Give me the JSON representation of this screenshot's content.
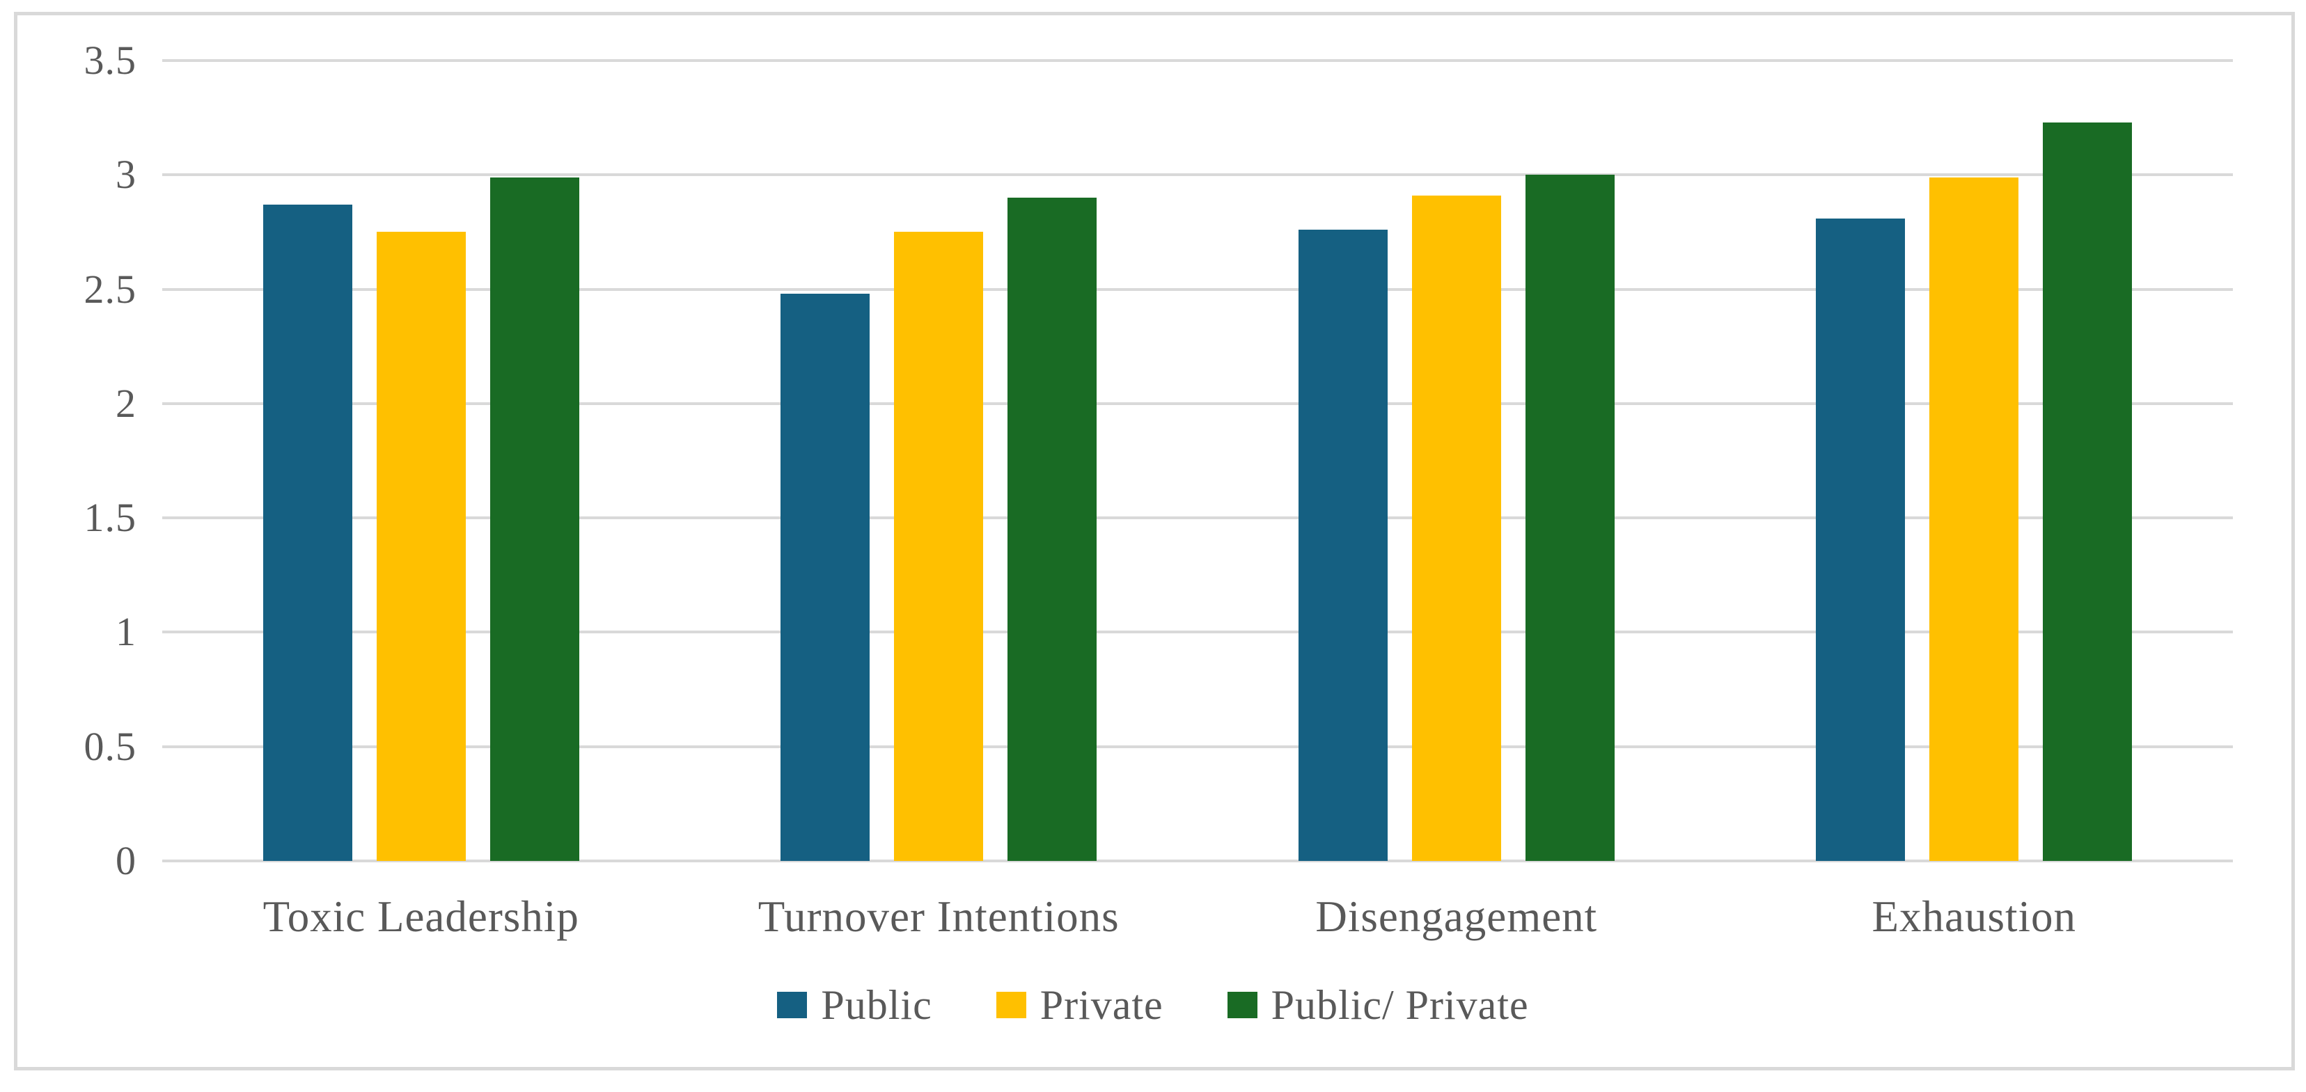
{
  "chart_data": {
    "type": "bar",
    "title": "",
    "categories": [
      "Toxic Leadership",
      "Turnover Intentions",
      "Disengagement",
      "Exhaustion"
    ],
    "series": [
      {
        "name": "Public",
        "color": "#156082",
        "values": [
          2.87,
          2.48,
          2.76,
          2.81
        ]
      },
      {
        "name": "Private",
        "color": "#FFC000",
        "values": [
          2.75,
          2.75,
          2.91,
          2.99
        ]
      },
      {
        "name": "Public/ Private",
        "color": "#196B24",
        "values": [
          2.99,
          2.9,
          3.0,
          3.23
        ]
      }
    ],
    "xlabel": "",
    "ylabel": "",
    "ylim": [
      0,
      3.5
    ],
    "yticks": [
      "0",
      "0.5",
      "1",
      "1.5",
      "2",
      "2.5",
      "3",
      "3.5"
    ],
    "ytick_values": [
      0,
      0.5,
      1,
      1.5,
      2,
      2.5,
      3,
      3.5
    ],
    "grid": "horizontal",
    "legend_position": "bottom",
    "colors": {
      "gridline": "#d9d9d9",
      "frame_border": "#d9d9d9",
      "tick_text": "#595959",
      "category_text": "#595959",
      "legend_text": "#595959",
      "background": "#ffffff"
    }
  }
}
